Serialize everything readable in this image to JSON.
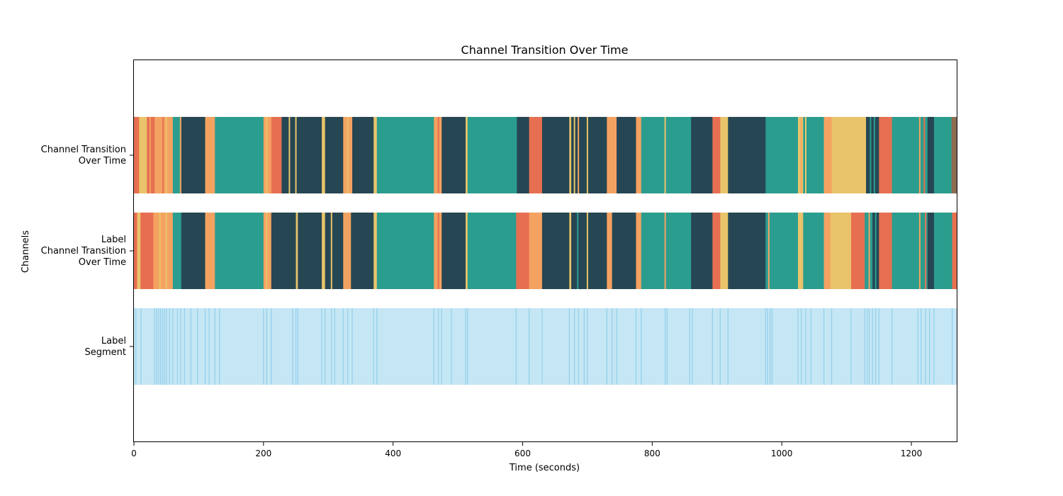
{
  "chart_data": {
    "type": "timeline",
    "title": "Channel Transition Over Time",
    "xlabel": "Time (seconds)",
    "ylabel": "Channels",
    "xlim": [
      0,
      1270
    ],
    "x_ticks": [
      0,
      200,
      400,
      600,
      800,
      1000,
      1200
    ],
    "grid": false,
    "legend": "none",
    "palette": {
      "dark": "#264653",
      "teal": "#2a9d8f",
      "yellow": "#e9c46a",
      "orange": "#f4a261",
      "red": "#e76f51",
      "brown": "#8c6d52",
      "segment_fill": "#c5e6f4",
      "segment_line": "#92d0ec"
    },
    "rows": [
      {
        "label": "Channel Transition\nOver Time",
        "segments": [
          {
            "start": 0,
            "end": 8,
            "color": "red"
          },
          {
            "start": 8,
            "end": 20,
            "color": "yellow"
          },
          {
            "start": 20,
            "end": 32,
            "color": "red"
          },
          {
            "start": 32,
            "end": 44,
            "color": "orange"
          },
          {
            "start": 44,
            "end": 60,
            "color": "orange"
          },
          {
            "start": 60,
            "end": 73,
            "color": "teal"
          },
          {
            "start": 73,
            "end": 110,
            "color": "dark"
          },
          {
            "start": 110,
            "end": 125,
            "color": "orange"
          },
          {
            "start": 125,
            "end": 200,
            "color": "teal"
          },
          {
            "start": 200,
            "end": 212,
            "color": "orange"
          },
          {
            "start": 212,
            "end": 228,
            "color": "red"
          },
          {
            "start": 228,
            "end": 290,
            "color": "dark"
          },
          {
            "start": 290,
            "end": 295,
            "color": "yellow"
          },
          {
            "start": 295,
            "end": 323,
            "color": "dark"
          },
          {
            "start": 323,
            "end": 337,
            "color": "orange"
          },
          {
            "start": 337,
            "end": 370,
            "color": "dark"
          },
          {
            "start": 370,
            "end": 375,
            "color": "yellow"
          },
          {
            "start": 375,
            "end": 463,
            "color": "teal"
          },
          {
            "start": 463,
            "end": 475,
            "color": "orange"
          },
          {
            "start": 475,
            "end": 512,
            "color": "dark"
          },
          {
            "start": 512,
            "end": 515,
            "color": "yellow"
          },
          {
            "start": 515,
            "end": 590,
            "color": "teal"
          },
          {
            "start": 590,
            "end": 610,
            "color": "dark"
          },
          {
            "start": 610,
            "end": 630,
            "color": "red"
          },
          {
            "start": 630,
            "end": 672,
            "color": "dark"
          },
          {
            "start": 672,
            "end": 675,
            "color": "yellow"
          },
          {
            "start": 675,
            "end": 730,
            "color": "dark"
          },
          {
            "start": 730,
            "end": 745,
            "color": "orange"
          },
          {
            "start": 745,
            "end": 775,
            "color": "dark"
          },
          {
            "start": 775,
            "end": 783,
            "color": "orange"
          },
          {
            "start": 783,
            "end": 860,
            "color": "teal"
          },
          {
            "start": 860,
            "end": 893,
            "color": "dark"
          },
          {
            "start": 893,
            "end": 905,
            "color": "red"
          },
          {
            "start": 905,
            "end": 917,
            "color": "yellow"
          },
          {
            "start": 917,
            "end": 975,
            "color": "dark"
          },
          {
            "start": 975,
            "end": 1025,
            "color": "teal"
          },
          {
            "start": 1025,
            "end": 1033,
            "color": "yellow"
          },
          {
            "start": 1033,
            "end": 1065,
            "color": "teal"
          },
          {
            "start": 1065,
            "end": 1077,
            "color": "orange"
          },
          {
            "start": 1077,
            "end": 1130,
            "color": "yellow"
          },
          {
            "start": 1130,
            "end": 1150,
            "color": "dark"
          },
          {
            "start": 1150,
            "end": 1170,
            "color": "red"
          },
          {
            "start": 1170,
            "end": 1210,
            "color": "teal"
          },
          {
            "start": 1210,
            "end": 1225,
            "color": "teal"
          },
          {
            "start": 1225,
            "end": 1235,
            "color": "dark"
          },
          {
            "start": 1235,
            "end": 1262,
            "color": "teal"
          },
          {
            "start": 1262,
            "end": 1270,
            "color": "brown"
          }
        ],
        "markers": [
          {
            "x": 10,
            "color": "yellow"
          },
          {
            "x": 25,
            "color": "orange"
          },
          {
            "x": 45,
            "color": "red"
          },
          {
            "x": 50,
            "color": "yellow"
          },
          {
            "x": 72,
            "color": "orange"
          },
          {
            "x": 205,
            "color": "yellow"
          },
          {
            "x": 210,
            "color": "orange"
          },
          {
            "x": 240,
            "color": "yellow"
          },
          {
            "x": 250,
            "color": "yellow"
          },
          {
            "x": 330,
            "color": "yellow"
          },
          {
            "x": 470,
            "color": "red"
          },
          {
            "x": 590,
            "color": "teal"
          },
          {
            "x": 680,
            "color": "yellow"
          },
          {
            "x": 686,
            "color": "orange"
          },
          {
            "x": 700,
            "color": "yellow"
          },
          {
            "x": 740,
            "color": "orange"
          },
          {
            "x": 820,
            "color": "yellow"
          },
          {
            "x": 1030,
            "color": "orange"
          },
          {
            "x": 1037,
            "color": "yellow"
          },
          {
            "x": 1137,
            "color": "teal"
          },
          {
            "x": 1143,
            "color": "teal"
          },
          {
            "x": 1213,
            "color": "orange"
          },
          {
            "x": 1220,
            "color": "red"
          }
        ]
      },
      {
        "label": "Label\nChannel Transition\nOver Time",
        "segments": [
          {
            "start": 0,
            "end": 5,
            "color": "red"
          },
          {
            "start": 5,
            "end": 10,
            "color": "yellow"
          },
          {
            "start": 10,
            "end": 30,
            "color": "red"
          },
          {
            "start": 30,
            "end": 45,
            "color": "orange"
          },
          {
            "start": 45,
            "end": 60,
            "color": "orange"
          },
          {
            "start": 60,
            "end": 73,
            "color": "teal"
          },
          {
            "start": 73,
            "end": 110,
            "color": "dark"
          },
          {
            "start": 110,
            "end": 125,
            "color": "orange"
          },
          {
            "start": 125,
            "end": 200,
            "color": "teal"
          },
          {
            "start": 200,
            "end": 212,
            "color": "orange"
          },
          {
            "start": 212,
            "end": 250,
            "color": "dark"
          },
          {
            "start": 250,
            "end": 253,
            "color": "yellow"
          },
          {
            "start": 253,
            "end": 290,
            "color": "dark"
          },
          {
            "start": 290,
            "end": 295,
            "color": "yellow"
          },
          {
            "start": 295,
            "end": 323,
            "color": "dark"
          },
          {
            "start": 323,
            "end": 335,
            "color": "orange"
          },
          {
            "start": 335,
            "end": 370,
            "color": "dark"
          },
          {
            "start": 370,
            "end": 375,
            "color": "yellow"
          },
          {
            "start": 375,
            "end": 463,
            "color": "teal"
          },
          {
            "start": 463,
            "end": 475,
            "color": "orange"
          },
          {
            "start": 475,
            "end": 512,
            "color": "dark"
          },
          {
            "start": 512,
            "end": 515,
            "color": "yellow"
          },
          {
            "start": 515,
            "end": 590,
            "color": "teal"
          },
          {
            "start": 590,
            "end": 610,
            "color": "red"
          },
          {
            "start": 610,
            "end": 630,
            "color": "orange"
          },
          {
            "start": 630,
            "end": 672,
            "color": "dark"
          },
          {
            "start": 672,
            "end": 675,
            "color": "yellow"
          },
          {
            "start": 675,
            "end": 730,
            "color": "dark"
          },
          {
            "start": 730,
            "end": 738,
            "color": "orange"
          },
          {
            "start": 738,
            "end": 775,
            "color": "dark"
          },
          {
            "start": 775,
            "end": 783,
            "color": "orange"
          },
          {
            "start": 783,
            "end": 860,
            "color": "teal"
          },
          {
            "start": 860,
            "end": 893,
            "color": "dark"
          },
          {
            "start": 893,
            "end": 905,
            "color": "red"
          },
          {
            "start": 905,
            "end": 917,
            "color": "yellow"
          },
          {
            "start": 917,
            "end": 975,
            "color": "dark"
          },
          {
            "start": 975,
            "end": 1025,
            "color": "teal"
          },
          {
            "start": 1025,
            "end": 1033,
            "color": "yellow"
          },
          {
            "start": 1033,
            "end": 1065,
            "color": "teal"
          },
          {
            "start": 1065,
            "end": 1075,
            "color": "orange"
          },
          {
            "start": 1075,
            "end": 1107,
            "color": "yellow"
          },
          {
            "start": 1107,
            "end": 1128,
            "color": "red"
          },
          {
            "start": 1128,
            "end": 1140,
            "color": "teal"
          },
          {
            "start": 1140,
            "end": 1150,
            "color": "dark"
          },
          {
            "start": 1150,
            "end": 1170,
            "color": "red"
          },
          {
            "start": 1170,
            "end": 1210,
            "color": "teal"
          },
          {
            "start": 1210,
            "end": 1225,
            "color": "teal"
          },
          {
            "start": 1225,
            "end": 1235,
            "color": "dark"
          },
          {
            "start": 1235,
            "end": 1263,
            "color": "teal"
          },
          {
            "start": 1263,
            "end": 1270,
            "color": "red"
          }
        ],
        "markers": [
          {
            "x": 40,
            "color": "yellow"
          },
          {
            "x": 50,
            "color": "yellow"
          },
          {
            "x": 205,
            "color": "yellow"
          },
          {
            "x": 305,
            "color": "yellow"
          },
          {
            "x": 470,
            "color": "red"
          },
          {
            "x": 685,
            "color": "teal"
          },
          {
            "x": 700,
            "color": "yellow"
          },
          {
            "x": 820,
            "color": "orange"
          },
          {
            "x": 980,
            "color": "orange"
          },
          {
            "x": 1135,
            "color": "orange"
          },
          {
            "x": 1145,
            "color": "teal"
          },
          {
            "x": 1213,
            "color": "orange"
          },
          {
            "x": 1222,
            "color": "red"
          }
        ]
      },
      {
        "label": "Label\nSegment",
        "fill": "segment_fill",
        "boundaries": [
          3,
          11,
          32,
          35,
          38,
          41,
          44,
          47,
          50,
          55,
          60,
          67,
          72,
          78,
          88,
          98,
          110,
          116,
          125,
          132,
          200,
          205,
          212,
          245,
          250,
          253,
          290,
          295,
          305,
          310,
          323,
          330,
          337,
          370,
          375,
          463,
          470,
          475,
          490,
          512,
          515,
          590,
          610,
          630,
          672,
          680,
          686,
          695,
          700,
          730,
          738,
          745,
          775,
          783,
          820,
          823,
          858,
          862,
          893,
          905,
          917,
          975,
          978,
          982,
          985,
          1025,
          1030,
          1037,
          1045,
          1065,
          1077,
          1107,
          1128,
          1132,
          1135,
          1140,
          1145,
          1150,
          1170,
          1210,
          1215,
          1222,
          1228,
          1235,
          1263
        ]
      }
    ]
  }
}
